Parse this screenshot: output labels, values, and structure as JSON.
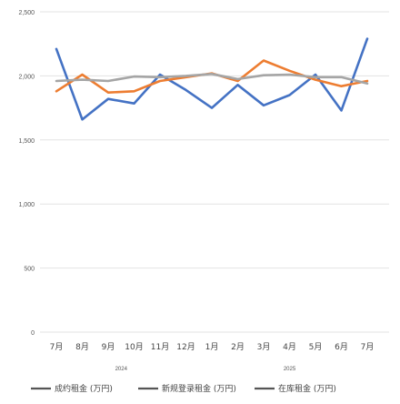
{
  "chart_data": {
    "type": "line",
    "title": "",
    "xlabel": "",
    "ylabel": "",
    "ylim": [
      0,
      2500
    ],
    "yticks": [
      0,
      500,
      1000,
      1500,
      2000,
      2500
    ],
    "ytick_labels": [
      "0",
      "500",
      "1,000",
      "1,500",
      "2,000",
      "2,500"
    ],
    "categories": [
      "7月",
      "8月",
      "9月",
      "10月",
      "11月",
      "12月",
      "1月",
      "2月",
      "3月",
      "4月",
      "5月",
      "6月",
      "7月"
    ],
    "year_groups": [
      {
        "label": "2024",
        "start": 0,
        "end": 5
      },
      {
        "label": "2025",
        "start": 6,
        "end": 12
      }
    ],
    "grid": true,
    "legend_position": "bottom",
    "series": [
      {
        "name": "成约租金 (万円)",
        "color": "#4472c4",
        "values": [
          2210,
          1660,
          1820,
          1785,
          2010,
          1890,
          1750,
          1930,
          1770,
          1850,
          2010,
          1730,
          2290
        ]
      },
      {
        "name": "新规登录租金 (万円)",
        "color": "#ed7d31",
        "values": [
          1880,
          2010,
          1870,
          1880,
          1960,
          1990,
          2020,
          1960,
          2120,
          2040,
          1970,
          1920,
          1960
        ]
      },
      {
        "name": "在库租金 (万円)",
        "color": "#a5a5a5",
        "values": [
          1960,
          1970,
          1960,
          1995,
          1990,
          2000,
          2015,
          1975,
          2005,
          2010,
          1990,
          1990,
          1940
        ]
      }
    ]
  }
}
